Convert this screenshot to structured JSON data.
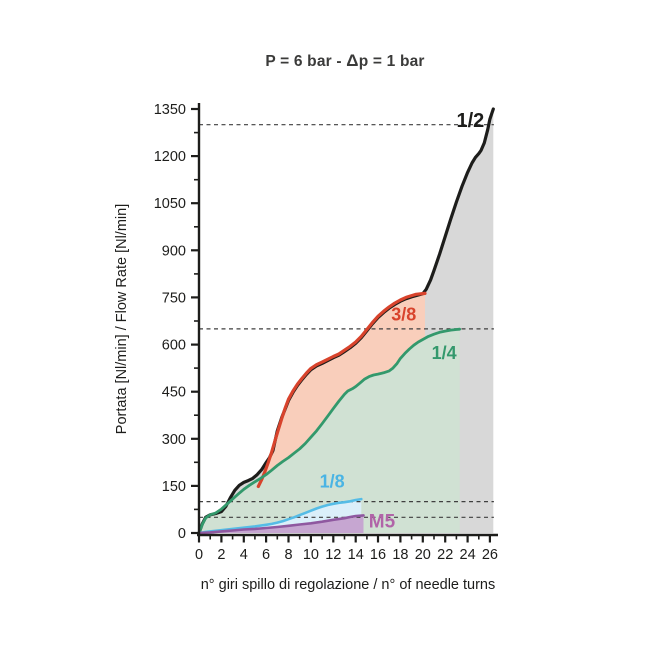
{
  "header": {
    "title_pre": "P = 6 bar - ",
    "title_delta": "Δ",
    "title_post": "p = 1 bar"
  },
  "chart_data": {
    "type": "line",
    "title": "P = 6 bar - Δp = 1 bar",
    "xlabel": "n° giri spillo di regolazione / n° of needle turns",
    "ylabel": "Portata [Nl/min] / Flow Rate [Nl/min]",
    "xlim": [
      0,
      26.6
    ],
    "ylim": [
      0,
      1350
    ],
    "grid": false,
    "axis_color": "#1d1d1b",
    "x_ticks": [
      0,
      2,
      4,
      6,
      8,
      10,
      12,
      14,
      16,
      18,
      20,
      22,
      24,
      26
    ],
    "x_tick_minor_step": 1,
    "y_ticks": [
      0,
      150,
      300,
      450,
      600,
      750,
      900,
      1050,
      1200,
      1350
    ],
    "y_tick_minor_step": 75,
    "reference_lines_dashed": [
      1300,
      650,
      100,
      50
    ],
    "reference_line_color": "#3f3f3f",
    "series": [
      {
        "name": "1/2",
        "line_color": "#1d1d1b",
        "fill_color": "#d8d8d8",
        "label_color": "#1d1d1b",
        "label_x": 24.25,
        "label_y": 1315,
        "label_size": 20,
        "line_width": 3.2,
        "points": [
          [
            0,
            0
          ],
          [
            0.3,
            30
          ],
          [
            0.6,
            50
          ],
          [
            1,
            58
          ],
          [
            1.5,
            62
          ],
          [
            2,
            68
          ],
          [
            2.4,
            85
          ],
          [
            2.8,
            112
          ],
          [
            3.2,
            136
          ],
          [
            3.6,
            152
          ],
          [
            4,
            161
          ],
          [
            4.4,
            167
          ],
          [
            4.8,
            174
          ],
          [
            5.2,
            186
          ],
          [
            5.6,
            202
          ],
          [
            6,
            224
          ],
          [
            6.3,
            240
          ],
          [
            6.6,
            262
          ],
          [
            7,
            325
          ],
          [
            7.4,
            368
          ],
          [
            7.7,
            395
          ],
          [
            8,
            422
          ],
          [
            8.4,
            448
          ],
          [
            8.8,
            470
          ],
          [
            9.2,
            488
          ],
          [
            9.6,
            505
          ],
          [
            10,
            520
          ],
          [
            10.5,
            532
          ],
          [
            11,
            540
          ],
          [
            11.5,
            549
          ],
          [
            12,
            558
          ],
          [
            12.5,
            566
          ],
          [
            13,
            578
          ],
          [
            13.5,
            590
          ],
          [
            14,
            604
          ],
          [
            14.5,
            622
          ],
          [
            15,
            644
          ],
          [
            15.5,
            666
          ],
          [
            16,
            686
          ],
          [
            16.5,
            702
          ],
          [
            17,
            716
          ],
          [
            17.5,
            728
          ],
          [
            18,
            738
          ],
          [
            18.5,
            746
          ],
          [
            19,
            752
          ],
          [
            19.4,
            756
          ],
          [
            20,
            762
          ],
          [
            20.3,
            776
          ],
          [
            20.7,
            806
          ],
          [
            21,
            836
          ],
          [
            21.5,
            888
          ],
          [
            22,
            944
          ],
          [
            22.5,
            1000
          ],
          [
            23,
            1054
          ],
          [
            23.5,
            1104
          ],
          [
            24,
            1148
          ],
          [
            24.4,
            1178
          ],
          [
            24.7,
            1196
          ],
          [
            25,
            1208
          ],
          [
            25.2,
            1218
          ],
          [
            25.5,
            1242
          ],
          [
            25.8,
            1284
          ],
          [
            26,
            1318
          ],
          [
            26.3,
            1350
          ]
        ]
      },
      {
        "name": "3/8",
        "line_color": "#d8432c",
        "fill_color": "#f9cebb",
        "label_color": "#d8432c",
        "label_x": 18.3,
        "label_y": 698,
        "label_size": 18,
        "line_width": 3.2,
        "points": [
          [
            5.3,
            148
          ],
          [
            5.6,
            170
          ],
          [
            5.9,
            196
          ],
          [
            6.2,
            226
          ],
          [
            6.5,
            258
          ],
          [
            6.8,
            295
          ],
          [
            7.1,
            330
          ],
          [
            7.4,
            365
          ],
          [
            7.7,
            398
          ],
          [
            8,
            426
          ],
          [
            8.4,
            452
          ],
          [
            8.8,
            474
          ],
          [
            9.2,
            492
          ],
          [
            9.6,
            509
          ],
          [
            10,
            524
          ],
          [
            10.5,
            536
          ],
          [
            11,
            544
          ],
          [
            11.5,
            553
          ],
          [
            12,
            562
          ],
          [
            12.5,
            570
          ],
          [
            13,
            582
          ],
          [
            13.5,
            594
          ],
          [
            14,
            608
          ],
          [
            14.5,
            626
          ],
          [
            15,
            648
          ],
          [
            15.5,
            670
          ],
          [
            16,
            690
          ],
          [
            16.5,
            706
          ],
          [
            17,
            720
          ],
          [
            17.5,
            732
          ],
          [
            18,
            742
          ],
          [
            18.5,
            750
          ],
          [
            19,
            756
          ],
          [
            19.4,
            760
          ],
          [
            20.2,
            763
          ]
        ]
      },
      {
        "name": "1/4",
        "line_color": "#33996c",
        "fill_color": "#d0e1d3",
        "label_color": "#33996c",
        "label_x": 21.9,
        "label_y": 575,
        "label_size": 18,
        "line_width": 2.8,
        "points": [
          [
            0,
            0
          ],
          [
            0.3,
            28
          ],
          [
            0.6,
            48
          ],
          [
            1,
            58
          ],
          [
            1.5,
            64
          ],
          [
            2,
            76
          ],
          [
            2.5,
            92
          ],
          [
            3,
            108
          ],
          [
            3.5,
            124
          ],
          [
            4,
            139
          ],
          [
            4.5,
            152
          ],
          [
            5,
            163
          ],
          [
            5.5,
            174
          ],
          [
            6,
            186
          ],
          [
            6.5,
            200
          ],
          [
            7,
            215
          ],
          [
            7.5,
            228
          ],
          [
            8,
            240
          ],
          [
            8.5,
            254
          ],
          [
            9,
            268
          ],
          [
            9.5,
            285
          ],
          [
            10,
            305
          ],
          [
            10.5,
            325
          ],
          [
            11,
            348
          ],
          [
            11.5,
            372
          ],
          [
            12,
            396
          ],
          [
            12.5,
            420
          ],
          [
            13,
            442
          ],
          [
            13.3,
            452
          ],
          [
            13.7,
            459
          ],
          [
            14,
            466
          ],
          [
            14.4,
            478
          ],
          [
            14.8,
            490
          ],
          [
            15.2,
            498
          ],
          [
            15.6,
            503
          ],
          [
            16,
            506
          ],
          [
            16.5,
            510
          ],
          [
            17,
            516
          ],
          [
            17.3,
            524
          ],
          [
            17.7,
            540
          ],
          [
            18,
            556
          ],
          [
            18.4,
            572
          ],
          [
            18.8,
            586
          ],
          [
            19.2,
            598
          ],
          [
            19.6,
            608
          ],
          [
            20,
            616
          ],
          [
            20.5,
            626
          ],
          [
            21,
            633
          ],
          [
            21.5,
            639
          ],
          [
            22,
            643
          ],
          [
            22.5,
            646
          ],
          [
            23,
            648
          ],
          [
            23.3,
            649
          ]
        ]
      },
      {
        "name": "1/8",
        "line_color": "#55bce6",
        "fill_color": "#dbeffa",
        "label_color": "#4ab4e4",
        "label_x": 11.9,
        "label_y": 165,
        "label_size": 18,
        "line_width": 2.6,
        "points": [
          [
            0,
            0
          ],
          [
            0.5,
            3
          ],
          [
            1,
            5
          ],
          [
            2,
            9
          ],
          [
            3,
            13
          ],
          [
            4,
            17
          ],
          [
            5,
            21
          ],
          [
            6,
            26
          ],
          [
            6.5,
            29
          ],
          [
            7,
            33
          ],
          [
            7.5,
            38
          ],
          [
            8,
            44
          ],
          [
            8.5,
            50
          ],
          [
            9,
            57
          ],
          [
            9.5,
            64
          ],
          [
            10,
            71
          ],
          [
            10.5,
            78
          ],
          [
            11,
            84
          ],
          [
            11.5,
            89
          ],
          [
            12,
            93
          ],
          [
            12.5,
            96
          ],
          [
            13,
            98
          ],
          [
            13.5,
            101
          ],
          [
            14,
            105
          ],
          [
            14.5,
            108
          ]
        ]
      },
      {
        "name": "M5",
        "line_color": "#8f58a0",
        "fill_color": "#c6a6d1",
        "label_color": "#b164a8",
        "label_x": 16.35,
        "label_y": 40,
        "label_size": 19,
        "line_width": 2.6,
        "points": [
          [
            0,
            0
          ],
          [
            1,
            2
          ],
          [
            2,
            5
          ],
          [
            3,
            8
          ],
          [
            4,
            11
          ],
          [
            5,
            13
          ],
          [
            6,
            16
          ],
          [
            7,
            19
          ],
          [
            8,
            23
          ],
          [
            9,
            27
          ],
          [
            10,
            31
          ],
          [
            11,
            36
          ],
          [
            12,
            42
          ],
          [
            13,
            47
          ],
          [
            13.5,
            51
          ],
          [
            14,
            54
          ],
          [
            14.7,
            56
          ]
        ]
      }
    ]
  }
}
